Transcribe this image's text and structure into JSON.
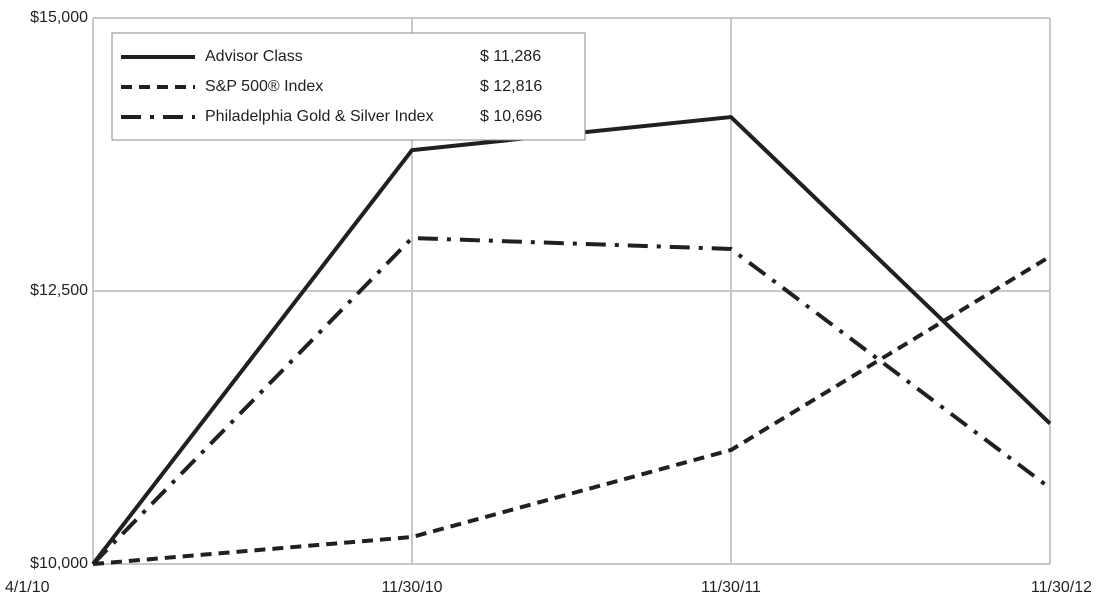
{
  "chart_data": {
    "type": "line",
    "categories": [
      "4/1/10",
      "11/30/10",
      "11/30/11",
      "11/30/12"
    ],
    "series": [
      {
        "name": "Advisor Class",
        "color": "#231f20",
        "dash": "solid",
        "values": [
          10000,
          13790,
          14093,
          11286
        ],
        "value_labels": [
          null,
          null,
          null,
          "$ 11,286"
        ]
      },
      {
        "name": "S&P 500® Index",
        "color": "#231f20",
        "dash": "dashed",
        "values": [
          10000,
          10247,
          11044,
          12816
        ],
        "value_labels": [
          null,
          null,
          null,
          "$ 12,816"
        ]
      },
      {
        "name": "Philadelphia Gold & Silver Index",
        "color": "#231f20",
        "dash": "dashdot",
        "values": [
          10000,
          12985,
          12885,
          10696
        ],
        "value_labels": [
          null,
          null,
          null,
          "$ 10,696"
        ]
      }
    ],
    "ylim": [
      10000,
      15000
    ],
    "yticks": [
      {
        "value": 10000,
        "label": "$10,000"
      },
      {
        "value": 12500,
        "label": "$12,500"
      },
      {
        "value": 15000,
        "label": "$15,000"
      }
    ],
    "grid": true,
    "legend": "upper left"
  }
}
